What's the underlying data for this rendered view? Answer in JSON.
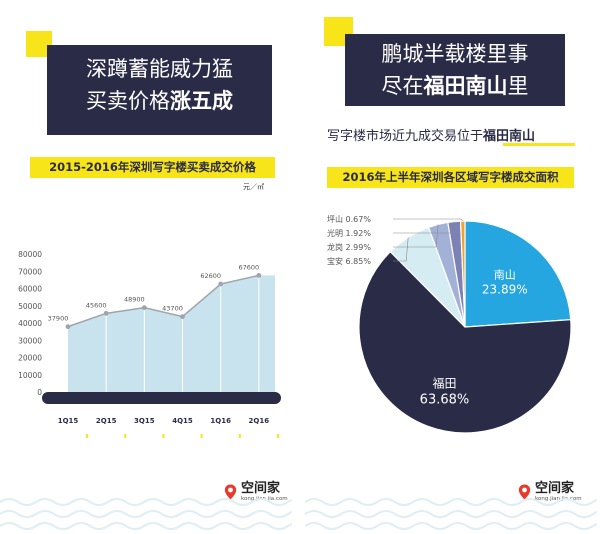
{
  "left": {
    "title_line1": "深蹲蓄能威力猛",
    "title_line2_pre": "买卖价格",
    "title_line2_bold": "涨五成",
    "subtitle": "2015-2016年深圳写字楼买卖成交价格",
    "unit": "元／㎡",
    "brand": {
      "name": "空间家",
      "url": "kong.jian.jia.com"
    }
  },
  "right": {
    "title_line1": "鹏城半载楼里事",
    "title_line2_pre": "尽在",
    "title_line2_bold": "福田南山",
    "title_line2_post": "里",
    "lead_pre": "写字楼市场近九成交易位于",
    "lead_bold": "福田南山",
    "subtitle": "2016年上半年深圳各区域写字楼成交面积",
    "brand": {
      "name": "空间家",
      "url": "kong.jian.jia.com"
    }
  },
  "colors": {
    "navy": "#2a2b47",
    "yellow": "#f7e51a",
    "area_fill": "#c9e3ee",
    "line": "#9fa3ab",
    "nanshan_blue": "#25a6e0",
    "baoan": "#d4ecf2",
    "longgang": "#a3b1d6",
    "guangming": "#7c82b6",
    "pingshan": "#f0a237"
  },
  "chart_data": [
    {
      "type": "area",
      "title": "2015-2016年深圳写字楼买卖成交价格",
      "ylabel": "元／㎡",
      "categories": [
        "1Q15",
        "2Q15",
        "3Q15",
        "4Q15",
        "1Q16",
        "2Q16"
      ],
      "values": [
        37900,
        45600,
        48900,
        43700,
        62600,
        67600
      ],
      "data_labels": [
        "37900",
        "45600",
        "48900",
        "43700",
        "62600",
        "67600"
      ],
      "ylim": [
        0,
        80000
      ],
      "yticks": [
        0,
        10000,
        20000,
        30000,
        40000,
        50000,
        60000,
        70000,
        80000
      ],
      "ytick_labels": [
        "0",
        "10000",
        "20000",
        "30000",
        "40000",
        "50000",
        "60000",
        "70000",
        "80000"
      ],
      "grid": false
    },
    {
      "type": "pie",
      "title": "2016年上半年深圳各区域写字楼成交面积",
      "slices": [
        {
          "name": "南山",
          "label": "23.89%",
          "value": 23.89,
          "color": "#25a6e0"
        },
        {
          "name": "福田",
          "label": "63.68%",
          "value": 63.68,
          "color": "#2a2b47"
        },
        {
          "name": "宝安",
          "label": "6.85%",
          "value": 6.85,
          "color": "#d4ecf2"
        },
        {
          "name": "龙岗",
          "label": "2.99%",
          "value": 2.99,
          "color": "#a3b1d6"
        },
        {
          "name": "光明",
          "label": "1.92%",
          "value": 1.92,
          "color": "#7c82b6"
        },
        {
          "name": "坪山",
          "label": "0.67%",
          "value": 0.67,
          "color": "#f0a237"
        }
      ],
      "legend_order": [
        "坪山",
        "光明",
        "龙岗",
        "宝安"
      ]
    }
  ]
}
